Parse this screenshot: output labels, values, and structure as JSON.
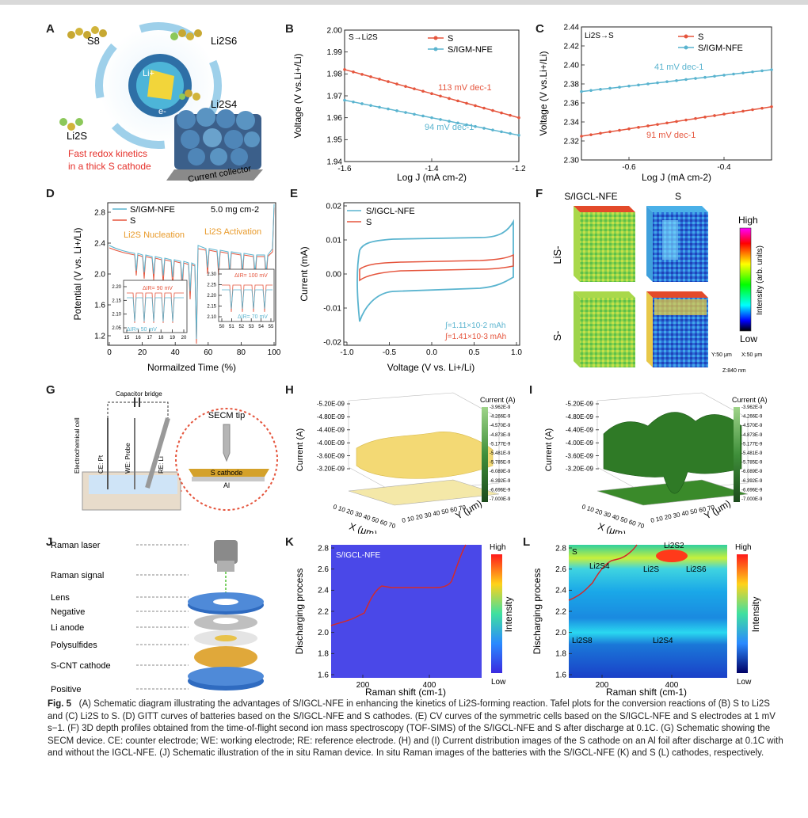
{
  "colors": {
    "s_red": "#e5553d",
    "igm_blue": "#5ab4cf",
    "text": "#222222"
  },
  "panel_labels": [
    "A",
    "B",
    "C",
    "D",
    "E",
    "F",
    "G",
    "H",
    "I",
    "J",
    "K",
    "L"
  ],
  "panelA": {
    "species": [
      "S8",
      "Li2S6",
      "Li2S4",
      "Li2S"
    ],
    "fast_text_1": "Fast redox kinetics",
    "fast_text_2": "in a thick S cathode",
    "collector": "Current collector",
    "ion_li": "Li+",
    "ion_e": "e-"
  },
  "panelB": {
    "title": "S→Li2S",
    "legend": [
      "S",
      "S/IGM-NFE"
    ],
    "ylabel": "Voltage (V vs.Li+/Li)",
    "xlabel": "Log J (mA cm-2)",
    "yticks": [
      "1.94",
      "1.95",
      "1.96",
      "1.97",
      "1.98",
      "1.99",
      "2.00"
    ],
    "xticks": [
      "-1.6",
      "-1.4",
      "-1.2"
    ],
    "anno_s": "113 mV dec-1",
    "anno_igm": "94 mV dec-1"
  },
  "panelC": {
    "title": "Li2S→S",
    "legend": [
      "S",
      "S/IGM-NFE"
    ],
    "ylabel": "Voltage (V vs.Li+/Li)",
    "xlabel": "Log J (mA cm-2)",
    "yticks": [
      "2.30",
      "2.32",
      "2.34",
      "2.36",
      "2.38",
      "2.40",
      "2.42",
      "2.44"
    ],
    "xticks": [
      "-0.6",
      "-0.4"
    ],
    "anno_igm": "41 mV dec-1",
    "anno_s": "91 mV dec-1"
  },
  "panelD": {
    "legend": [
      "S/IGM-NFE",
      "S"
    ],
    "loading": "5.0 mg cm-2",
    "ylabel": "Potential (V vs. Li+/Li)",
    "xlabel": "Normailzed Time (%)",
    "yticks": [
      "1.2",
      "1.6",
      "2.0",
      "2.4",
      "2.8"
    ],
    "xticks": [
      "0",
      "20",
      "40",
      "60",
      "80",
      "100"
    ],
    "nucleation": "Li2S Nucleation",
    "activation": "Li2S Activation",
    "inset1": {
      "ir_s": "ΔIR= 90 mV",
      "ir_igm": "ΔIR= 50 mV",
      "yticks": [
        "2.05",
        "2.10",
        "2.15",
        "2.20"
      ],
      "xticks": [
        "15",
        "16",
        "17",
        "18",
        "19",
        "20"
      ]
    },
    "inset2": {
      "ir_s": "ΔIR= 100 mV",
      "ir_igm": "ΔIR= 70 mV",
      "yticks": [
        "2.10",
        "2.15",
        "2.20",
        "2.25",
        "2.30"
      ],
      "xticks": [
        "50",
        "51",
        "52",
        "53",
        "54",
        "55"
      ]
    }
  },
  "panelE": {
    "legend": [
      "S/IGCL-NFE",
      "S"
    ],
    "ylabel": "Current (mA)",
    "xlabel": "Voltage (V vs. Li+/Li)",
    "yticks": [
      "-0.02",
      "-0.01",
      "0.00",
      "0.01",
      "0.02"
    ],
    "xticks": [
      "-1.0",
      "-0.5",
      "0.0",
      "0.5",
      "1.0"
    ],
    "int_igcl": "∫=1.11×10-2 mAh",
    "int_s": "∫=1.41×10-3 mAh"
  },
  "panelF": {
    "cols": [
      "S/IGCL-NFE",
      "S"
    ],
    "rows": [
      "LiS-",
      "S-"
    ],
    "cb_high": "High",
    "cb_low": "Low",
    "cb_label": "Intensity (arb. units)",
    "axes": [
      "Y:50 μm",
      "X:50 μm",
      "Z:840 nm"
    ]
  },
  "panelG": {
    "bridge": "Capacitor bridge",
    "cell": "Electrochemical cell",
    "ce": "CE: Pt",
    "we": "WE: Probe",
    "re": "RE: Li",
    "tip": "SECM tip",
    "cathode": "S cathode",
    "al": "Al"
  },
  "panelH": {
    "zlabel": "Current (A)",
    "zticks": [
      "-3.20E-09",
      "-3.60E-09",
      "-4.00E-09",
      "-4.40E-09",
      "-4.80E-09",
      "-5.20E-09"
    ],
    "xlabel": "X (μm)",
    "ylabel": "Y (μm)",
    "cb_title": "Current (A)",
    "cb_ticks": [
      "-3.962E-9",
      "-4.266E-9",
      "-4.570E-9",
      "-4.873E-9",
      "-5.177E-9",
      "-5.481E-9",
      "-5.785E-9",
      "-6.089E-9",
      "-6.392E-9",
      "-6.696E-9",
      "-7.000E-9"
    ],
    "xy_ticks": "0 10 20 30 40 50 60 70"
  },
  "panelI": {
    "zlabel": "Current (A)",
    "zticks": [
      "-3.20E-09",
      "-3.60E-09",
      "-4.00E-09",
      "-4.40E-09",
      "-4.80E-09",
      "-5.20E-09"
    ],
    "xlabel": "X (μm)",
    "ylabel": "Y (μm)",
    "cb_title": "Current (A)",
    "cb_ticks": [
      "-3.962E-9",
      "-4.266E-9",
      "-4.570E-9",
      "-4.873E-9",
      "-5.177E-9",
      "-5.481E-9",
      "-5.785E-9",
      "-6.089E-9",
      "-6.392E-9",
      "-6.696E-9",
      "-7.000E-9"
    ],
    "xy_ticks": "0 10 20 30 40 50 60 70"
  },
  "panelJ": {
    "labels": [
      "Raman laser",
      "Raman signal",
      "Lens",
      "Negative",
      "Li anode",
      "Polysulfides",
      "S-CNT cathode",
      "Positive"
    ]
  },
  "panelK": {
    "title": "S/IGCL-NFE",
    "ylabel": "Discharging process",
    "xlabel": "Raman shift (cm-1)",
    "yticks": [
      "1.6",
      "1.8",
      "2.0",
      "2.2",
      "2.4",
      "2.6",
      "2.8"
    ],
    "xticks": [
      "200",
      "400"
    ],
    "cb_high": "High",
    "cb_low": "Low",
    "cb_label": "Intensity"
  },
  "panelL": {
    "ylabel": "Discharging process",
    "xlabel": "Raman shift (cm-1)",
    "yticks": [
      "1.6",
      "1.8",
      "2.0",
      "2.2",
      "2.4",
      "2.6",
      "2.8"
    ],
    "xticks": [
      "200",
      "400"
    ],
    "species": [
      "S",
      "Li2S2",
      "Li2S4",
      "Li2S",
      "Li2S6",
      "Li2S8",
      "Li2S4"
    ],
    "cb_high": "High",
    "cb_low": "Low",
    "cb_label": "Intensity"
  },
  "caption": {
    "fig": "Fig. 5",
    "text": "(A) Schematic diagram illustrating the advantages of S/IGCL-NFE in enhancing the kinetics of Li2S-forming reaction. Tafel plots for the conversion reactions of (B) S to Li2S and (C) Li2S to S. (D) GITT curves of batteries based on the S/IGCL-NFE and S cathodes. (E) CV curves of the symmetric cells based on the S/IGCL-NFE and S electrodes at 1 mV s−1. (F) 3D depth profiles obtained from the time-of-flight second ion mass spectroscopy (TOF-SIMS) of the S/IGCL-NFE and S after discharge at 0.1C. (G) Schematic showing the SECM device. CE: counter electrode; WE: working electrode; RE: reference electrode. (H) and (I) Current distribution images of the S cathode on an Al foil after discharge at 0.1C with and without the IGCL-NFE. (J) Schematic illustration of the in situ Raman device. In situ Raman images of the batteries with the S/IGCL-NFE (K) and S (L) cathodes, respectively."
  }
}
